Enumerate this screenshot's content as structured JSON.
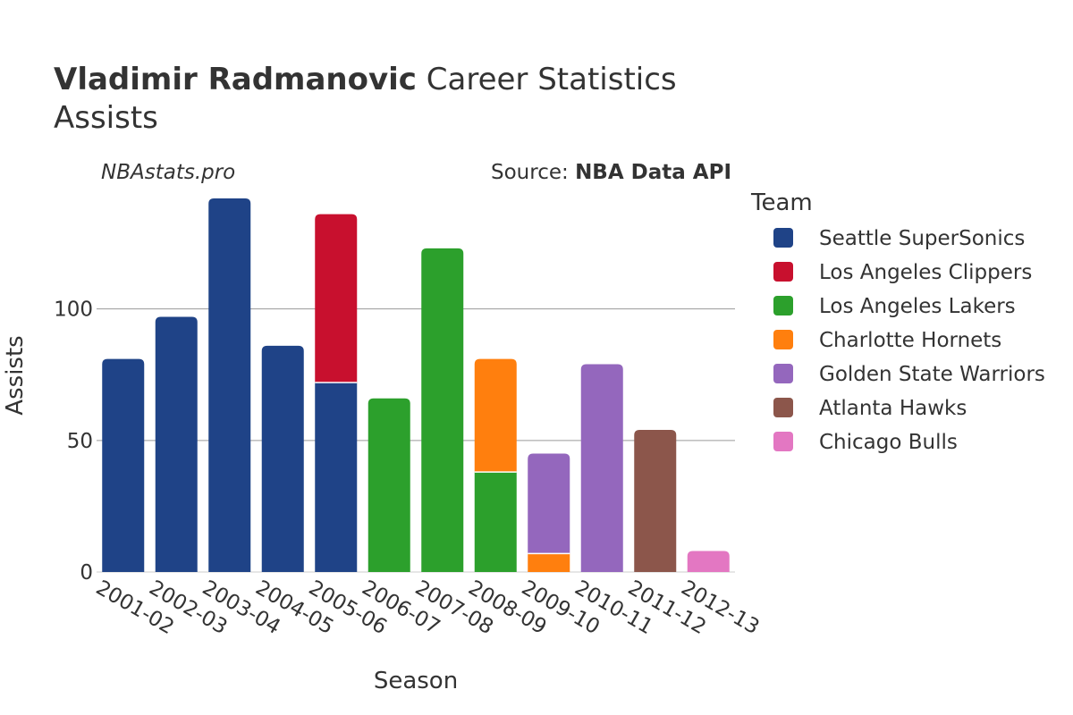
{
  "header": {
    "title_bold": "Vladimir Radmanovic",
    "title_rest": " Career Statistics",
    "subtitle": "Assists",
    "watermark": "NBAstats.pro",
    "source_prefix": "Source: ",
    "source_name": "NBA Data API"
  },
  "chart_data": {
    "type": "bar",
    "stacked": true,
    "xlabel": "Season",
    "ylabel": "Assists",
    "ylim": [
      0,
      142
    ],
    "yticks": [
      0,
      50,
      100
    ],
    "grid": true,
    "legend_title": "Team",
    "legend_position": "right",
    "categories": [
      "2001-02",
      "2002-03",
      "2003-04",
      "2004-05",
      "2005-06",
      "2006-07",
      "2007-08",
      "2008-09",
      "2009-10",
      "2010-11",
      "2011-12",
      "2012-13"
    ],
    "series": [
      {
        "name": "Seattle SuperSonics",
        "color": "#1f4387",
        "values": [
          81,
          97,
          142,
          86,
          72,
          0,
          0,
          0,
          0,
          0,
          0,
          0
        ]
      },
      {
        "name": "Los Angeles Clippers",
        "color": "#c8102e",
        "values": [
          0,
          0,
          0,
          0,
          64,
          0,
          0,
          0,
          0,
          0,
          0,
          0
        ]
      },
      {
        "name": "Los Angeles Lakers",
        "color": "#2ca02c",
        "values": [
          0,
          0,
          0,
          0,
          0,
          66,
          123,
          38,
          0,
          0,
          0,
          0
        ]
      },
      {
        "name": "Charlotte Hornets",
        "color": "#ff7f0e",
        "values": [
          0,
          0,
          0,
          0,
          0,
          0,
          0,
          43,
          7,
          0,
          0,
          0
        ]
      },
      {
        "name": "Golden State Warriors",
        "color": "#9467bd",
        "values": [
          0,
          0,
          0,
          0,
          0,
          0,
          0,
          0,
          38,
          79,
          0,
          0
        ]
      },
      {
        "name": "Atlanta Hawks",
        "color": "#8c564b",
        "values": [
          0,
          0,
          0,
          0,
          0,
          0,
          0,
          0,
          0,
          0,
          54,
          0
        ]
      },
      {
        "name": "Chicago Bulls",
        "color": "#e377c2",
        "values": [
          0,
          0,
          0,
          0,
          0,
          0,
          0,
          0,
          0,
          0,
          0,
          8
        ]
      }
    ]
  }
}
